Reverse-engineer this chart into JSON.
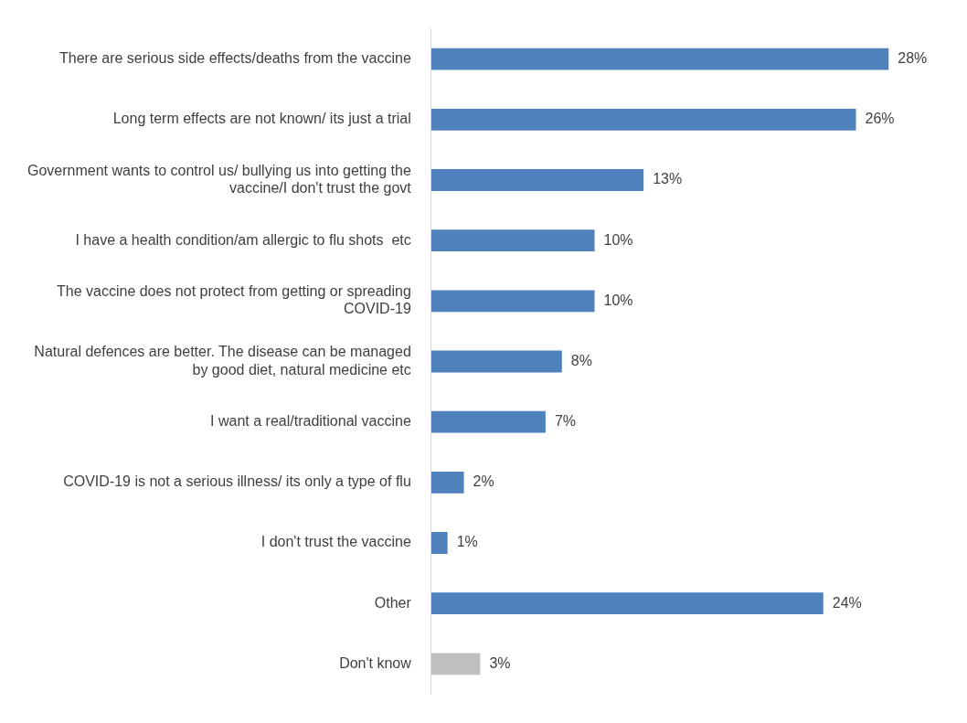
{
  "chart_data": {
    "type": "bar",
    "orientation": "horizontal",
    "categories": [
      "There are serious side effects/deaths from the vaccine",
      "Long term effects are not known/ its just a trial",
      "Government wants to control us/ bullying us into getting the vaccine/I don't trust the govt",
      "I have a health condition/am allergic to flu shots  etc",
      "The vaccine does not protect from getting or spreading COVID-19",
      "Natural defences are better. The disease can be managed by good diet, natural medicine etc",
      "I want a real/traditional vaccine",
      "COVID-19 is not a serious illness/ its only a type of flu",
      "I don't trust the vaccine",
      "Other",
      "Don't know"
    ],
    "values": [
      28,
      26,
      13,
      10,
      10,
      8,
      7,
      2,
      1,
      24,
      3
    ],
    "colors": [
      "#4f81bd",
      "#4f81bd",
      "#4f81bd",
      "#4f81bd",
      "#4f81bd",
      "#4f81bd",
      "#4f81bd",
      "#4f81bd",
      "#4f81bd",
      "#4f81bd",
      "#bfbfbf"
    ],
    "value_labels": [
      "28%",
      "26%",
      "13%",
      "10%",
      "10%",
      "8%",
      "7%",
      "2%",
      "1%",
      "24%",
      "3%"
    ]
  }
}
